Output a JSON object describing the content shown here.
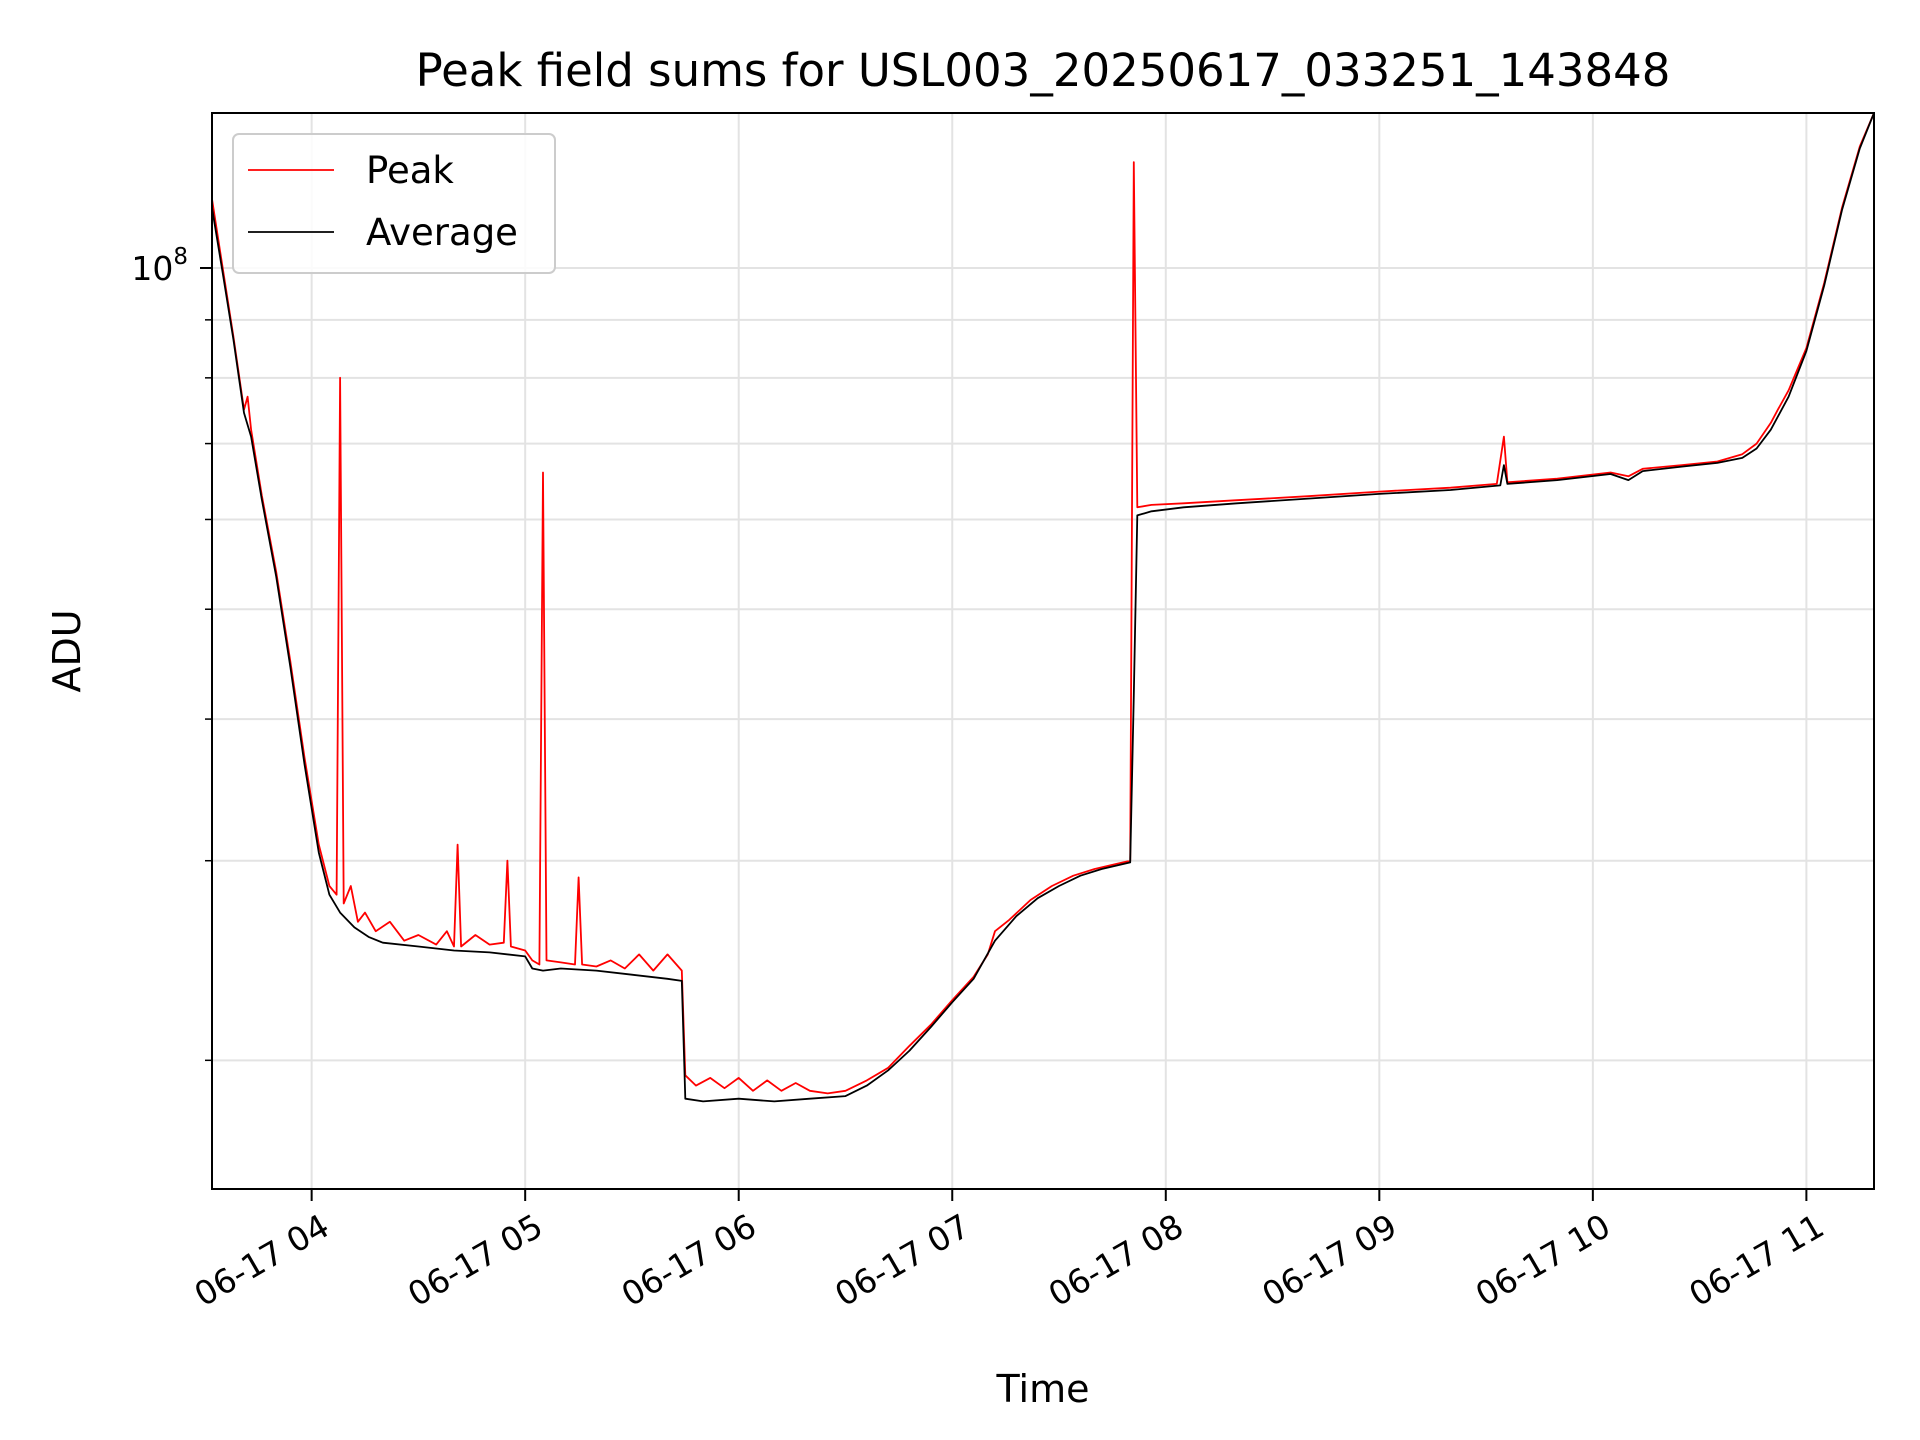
{
  "chart_data": {
    "type": "line",
    "title": "Peak field sums for USL003_20250617_033251_143848",
    "xlabel": "Time",
    "ylabel": "ADU",
    "y_scale": "log",
    "xlim": [
      "2025-06-17 03:32",
      "2025-06-17 11:19"
    ],
    "ylim": [
      15400000,
      137000000
    ],
    "grid": true,
    "legend": {
      "position": "top-left"
    },
    "x_ticks": [
      "06-17 04",
      "06-17 05",
      "06-17 06",
      "06-17 07",
      "06-17 08",
      "06-17 09",
      "06-17 10",
      "06-17 11"
    ],
    "x_tick_times": [
      "2025-06-17 04:00",
      "2025-06-17 05:00",
      "2025-06-17 06:00",
      "2025-06-17 07:00",
      "2025-06-17 08:00",
      "2025-06-17 09:00",
      "2025-06-17 10:00",
      "2025-06-17 11:00"
    ],
    "y_major_ticks": [
      {
        "value": 100000000,
        "base": "10",
        "exponent": "8"
      }
    ],
    "y_minor_ticks": [
      20000000,
      30000000,
      40000000,
      50000000,
      60000000,
      70000000,
      80000000,
      90000000
    ],
    "series": [
      {
        "name": "Peak",
        "color": "#ff0000",
        "points": [
          [
            "2025-06-17 03:32",
            115000000
          ],
          [
            "2025-06-17 03:35",
            100000000
          ],
          [
            "2025-06-17 03:38",
            87000000
          ],
          [
            "2025-06-17 03:41",
            75000000
          ],
          [
            "2025-06-17 03:42",
            77000000
          ],
          [
            "2025-06-17 03:43",
            72000000
          ],
          [
            "2025-06-17 03:46",
            63000000
          ],
          [
            "2025-06-17 03:50",
            54000000
          ],
          [
            "2025-06-17 03:54",
            45000000
          ],
          [
            "2025-06-17 03:58",
            37000000
          ],
          [
            "2025-06-17 04:02",
            31000000
          ],
          [
            "2025-06-17 04:05",
            28500000
          ],
          [
            "2025-06-17 04:07",
            28000000
          ],
          [
            "2025-06-17 04:08",
            80000000
          ],
          [
            "2025-06-17 04:09",
            27500000
          ],
          [
            "2025-06-17 04:11",
            28500000
          ],
          [
            "2025-06-17 04:13",
            26500000
          ],
          [
            "2025-06-17 04:15",
            27000000
          ],
          [
            "2025-06-17 04:18",
            26000000
          ],
          [
            "2025-06-17 04:22",
            26500000
          ],
          [
            "2025-06-17 04:26",
            25500000
          ],
          [
            "2025-06-17 04:30",
            25800000
          ],
          [
            "2025-06-17 04:35",
            25300000
          ],
          [
            "2025-06-17 04:38",
            26000000
          ],
          [
            "2025-06-17 04:40",
            25200000
          ],
          [
            "2025-06-17 04:41",
            31000000
          ],
          [
            "2025-06-17 04:42",
            25200000
          ],
          [
            "2025-06-17 04:46",
            25800000
          ],
          [
            "2025-06-17 04:50",
            25300000
          ],
          [
            "2025-06-17 04:54",
            25400000
          ],
          [
            "2025-06-17 04:55",
            30000000
          ],
          [
            "2025-06-17 04:56",
            25200000
          ],
          [
            "2025-06-17 05:00",
            25000000
          ],
          [
            "2025-06-17 05:02",
            24500000
          ],
          [
            "2025-06-17 05:04",
            24300000
          ],
          [
            "2025-06-17 05:05",
            66000000
          ],
          [
            "2025-06-17 05:06",
            24500000
          ],
          [
            "2025-06-17 05:10",
            24400000
          ],
          [
            "2025-06-17 05:14",
            24300000
          ],
          [
            "2025-06-17 05:15",
            29000000
          ],
          [
            "2025-06-17 05:16",
            24300000
          ],
          [
            "2025-06-17 05:20",
            24200000
          ],
          [
            "2025-06-17 05:24",
            24500000
          ],
          [
            "2025-06-17 05:28",
            24100000
          ],
          [
            "2025-06-17 05:32",
            24800000
          ],
          [
            "2025-06-17 05:36",
            24000000
          ],
          [
            "2025-06-17 05:40",
            24800000
          ],
          [
            "2025-06-17 05:44",
            24000000
          ],
          [
            "2025-06-17 05:45",
            19400000
          ],
          [
            "2025-06-17 05:48",
            19000000
          ],
          [
            "2025-06-17 05:52",
            19300000
          ],
          [
            "2025-06-17 05:56",
            18900000
          ],
          [
            "2025-06-17 06:00",
            19300000
          ],
          [
            "2025-06-17 06:04",
            18800000
          ],
          [
            "2025-06-17 06:08",
            19200000
          ],
          [
            "2025-06-17 06:12",
            18800000
          ],
          [
            "2025-06-17 06:16",
            19100000
          ],
          [
            "2025-06-17 06:20",
            18800000
          ],
          [
            "2025-06-17 06:25",
            18700000
          ],
          [
            "2025-06-17 06:30",
            18800000
          ],
          [
            "2025-06-17 06:36",
            19200000
          ],
          [
            "2025-06-17 06:42",
            19700000
          ],
          [
            "2025-06-17 06:48",
            20600000
          ],
          [
            "2025-06-17 06:54",
            21500000
          ],
          [
            "2025-06-17 07:00",
            22600000
          ],
          [
            "2025-06-17 07:06",
            23700000
          ],
          [
            "2025-06-17 07:10",
            24800000
          ],
          [
            "2025-06-17 07:12",
            26000000
          ],
          [
            "2025-06-17 07:16",
            26600000
          ],
          [
            "2025-06-17 07:22",
            27700000
          ],
          [
            "2025-06-17 07:28",
            28500000
          ],
          [
            "2025-06-17 07:34",
            29100000
          ],
          [
            "2025-06-17 07:40",
            29500000
          ],
          [
            "2025-06-17 07:46",
            29800000
          ],
          [
            "2025-06-17 07:50",
            30000000
          ],
          [
            "2025-06-17 07:51",
            124000000
          ],
          [
            "2025-06-17 07:52",
            61500000
          ],
          [
            "2025-06-17 07:56",
            61800000
          ],
          [
            "2025-06-17 08:05",
            62000000
          ],
          [
            "2025-06-17 08:20",
            62400000
          ],
          [
            "2025-06-17 08:40",
            62900000
          ],
          [
            "2025-06-17 09:00",
            63500000
          ],
          [
            "2025-06-17 09:20",
            64000000
          ],
          [
            "2025-06-17 09:33",
            64500000
          ],
          [
            "2025-06-17 09:35",
            71000000
          ],
          [
            "2025-06-17 09:36",
            64700000
          ],
          [
            "2025-06-17 09:50",
            65200000
          ],
          [
            "2025-06-17 10:05",
            66000000
          ],
          [
            "2025-06-17 10:10",
            65500000
          ],
          [
            "2025-06-17 10:14",
            66500000
          ],
          [
            "2025-06-17 10:25",
            67000000
          ],
          [
            "2025-06-17 10:35",
            67500000
          ],
          [
            "2025-06-17 10:42",
            68500000
          ],
          [
            "2025-06-17 10:46",
            70000000
          ],
          [
            "2025-06-17 10:50",
            73000000
          ],
          [
            "2025-06-17 10:52",
            75000000
          ],
          [
            "2025-06-17 10:55",
            78000000
          ],
          [
            "2025-06-17 11:00",
            85000000
          ],
          [
            "2025-06-17 11:05",
            97000000
          ],
          [
            "2025-06-17 11:10",
            113000000
          ],
          [
            "2025-06-17 11:15",
            128000000
          ],
          [
            "2025-06-17 11:19",
            137000000
          ]
        ]
      },
      {
        "name": "Average",
        "color": "#000000",
        "points": [
          [
            "2025-06-17 03:32",
            113000000
          ],
          [
            "2025-06-17 03:35",
            99000000
          ],
          [
            "2025-06-17 03:38",
            86500000
          ],
          [
            "2025-06-17 03:41",
            74500000
          ],
          [
            "2025-06-17 03:43",
            71000000
          ],
          [
            "2025-06-17 03:46",
            62500000
          ],
          [
            "2025-06-17 03:50",
            53500000
          ],
          [
            "2025-06-17 03:54",
            44500000
          ],
          [
            "2025-06-17 03:58",
            36500000
          ],
          [
            "2025-06-17 04:02",
            30500000
          ],
          [
            "2025-06-17 04:05",
            28000000
          ],
          [
            "2025-06-17 04:08",
            27000000
          ],
          [
            "2025-06-17 04:12",
            26200000
          ],
          [
            "2025-06-17 04:16",
            25700000
          ],
          [
            "2025-06-17 04:20",
            25400000
          ],
          [
            "2025-06-17 04:30",
            25200000
          ],
          [
            "2025-06-17 04:40",
            25000000
          ],
          [
            "2025-06-17 04:50",
            24900000
          ],
          [
            "2025-06-17 05:00",
            24700000
          ],
          [
            "2025-06-17 05:02",
            24100000
          ],
          [
            "2025-06-17 05:05",
            24000000
          ],
          [
            "2025-06-17 05:10",
            24100000
          ],
          [
            "2025-06-17 05:20",
            24000000
          ],
          [
            "2025-06-17 05:30",
            23800000
          ],
          [
            "2025-06-17 05:40",
            23600000
          ],
          [
            "2025-06-17 05:44",
            23500000
          ],
          [
            "2025-06-17 05:45",
            18500000
          ],
          [
            "2025-06-17 05:50",
            18400000
          ],
          [
            "2025-06-17 06:00",
            18500000
          ],
          [
            "2025-06-17 06:10",
            18400000
          ],
          [
            "2025-06-17 06:20",
            18500000
          ],
          [
            "2025-06-17 06:30",
            18600000
          ],
          [
            "2025-06-17 06:36",
            19000000
          ],
          [
            "2025-06-17 06:42",
            19600000
          ],
          [
            "2025-06-17 06:48",
            20400000
          ],
          [
            "2025-06-17 06:54",
            21400000
          ],
          [
            "2025-06-17 07:00",
            22500000
          ],
          [
            "2025-06-17 07:06",
            23600000
          ],
          [
            "2025-06-17 07:12",
            25500000
          ],
          [
            "2025-06-17 07:18",
            26800000
          ],
          [
            "2025-06-17 07:24",
            27800000
          ],
          [
            "2025-06-17 07:30",
            28500000
          ],
          [
            "2025-06-17 07:36",
            29100000
          ],
          [
            "2025-06-17 07:42",
            29500000
          ],
          [
            "2025-06-17 07:50",
            29900000
          ],
          [
            "2025-06-17 07:51",
            42000000
          ],
          [
            "2025-06-17 07:52",
            60500000
          ],
          [
            "2025-06-17 07:56",
            61000000
          ],
          [
            "2025-06-17 08:05",
            61500000
          ],
          [
            "2025-06-17 08:20",
            62000000
          ],
          [
            "2025-06-17 08:40",
            62600000
          ],
          [
            "2025-06-17 09:00",
            63200000
          ],
          [
            "2025-06-17 09:20",
            63700000
          ],
          [
            "2025-06-17 09:34",
            64300000
          ],
          [
            "2025-06-17 09:35",
            67000000
          ],
          [
            "2025-06-17 09:36",
            64500000
          ],
          [
            "2025-06-17 09:50",
            65000000
          ],
          [
            "2025-06-17 10:05",
            65800000
          ],
          [
            "2025-06-17 10:10",
            65000000
          ],
          [
            "2025-06-17 10:14",
            66200000
          ],
          [
            "2025-06-17 10:25",
            66800000
          ],
          [
            "2025-06-17 10:35",
            67300000
          ],
          [
            "2025-06-17 10:42",
            68000000
          ],
          [
            "2025-06-17 10:46",
            69300000
          ],
          [
            "2025-06-17 10:50",
            72000000
          ],
          [
            "2025-06-17 10:55",
            77000000
          ],
          [
            "2025-06-17 11:00",
            84500000
          ],
          [
            "2025-06-17 11:05",
            96500000
          ],
          [
            "2025-06-17 11:10",
            112500000
          ],
          [
            "2025-06-17 11:15",
            127500000
          ],
          [
            "2025-06-17 11:19",
            137000000
          ]
        ]
      }
    ]
  }
}
